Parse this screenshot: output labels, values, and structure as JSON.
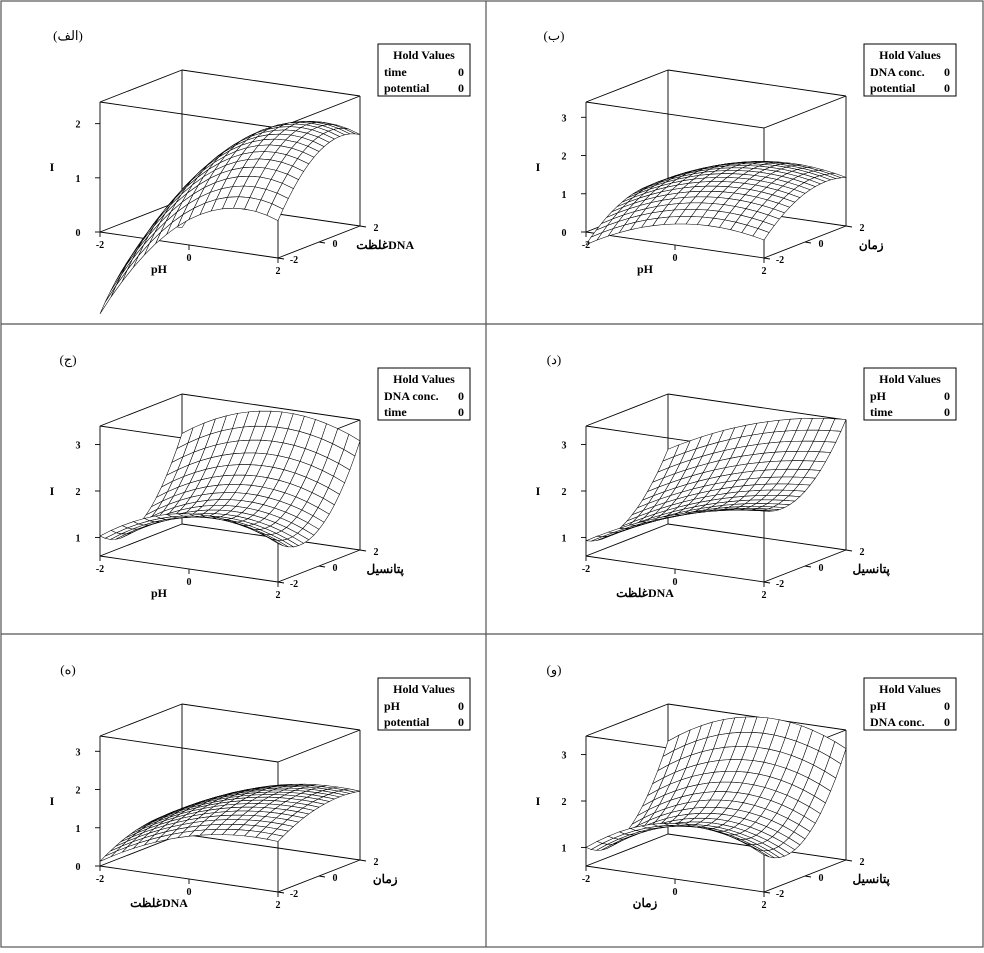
{
  "chart_data": [
    {
      "type": "surface",
      "panel_label": "(الف)",
      "hold_values": {
        "title": "Hold Values",
        "rows": [
          [
            "time",
            "0"
          ],
          [
            "potential",
            "0"
          ]
        ]
      },
      "z_label": "I",
      "x_label": "pH",
      "y_label": "غلظتDNA",
      "z_ticks": [
        "0",
        "1",
        "2"
      ],
      "x_ticks": [
        "-2",
        "0",
        "2"
      ],
      "y_ticks": [
        "-2",
        "0",
        "2"
      ],
      "zlim": [
        0,
        2.4
      ],
      "surface": {
        "c0": 1.45,
        "x": 0.55,
        "y": 0.25,
        "xx": -0.22,
        "yy": -0.12,
        "xy": 0.0
      }
    },
    {
      "type": "surface",
      "panel_label": "(ب)",
      "hold_values": {
        "title": "Hold Values",
        "rows": [
          [
            "DNA conc.",
            "0"
          ],
          [
            "potential",
            "0"
          ]
        ]
      },
      "z_label": "I",
      "x_label": "pH",
      "y_label": "زمان",
      "z_ticks": [
        "0",
        "1",
        "2",
        "3"
      ],
      "x_ticks": [
        "-2",
        "0",
        "2"
      ],
      "y_ticks": [
        "-2",
        "0",
        "2"
      ],
      "zlim": [
        0,
        3.4
      ],
      "surface": {
        "c0": 1.35,
        "x": 0.2,
        "y": 0.2,
        "xx": -0.12,
        "yy": -0.1,
        "xy": 0.0
      }
    },
    {
      "type": "surface",
      "panel_label": "(ج)",
      "hold_values": {
        "title": "Hold Values",
        "rows": [
          [
            "DNA conc.",
            "0"
          ],
          [
            "time",
            "0"
          ]
        ]
      },
      "z_label": "I",
      "x_label": "pH",
      "y_label": "پتانسیل",
      "z_ticks": [
        "1",
        "2",
        "3"
      ],
      "x_ticks": [
        "-2",
        "0",
        "2"
      ],
      "y_ticks": [
        "-2",
        "0",
        "2"
      ],
      "zlim": [
        0.6,
        3.4
      ],
      "surface": {
        "c0": 1.75,
        "x": 0.1,
        "y": 0.38,
        "xx": -0.14,
        "yy": 0.2,
        "xy": 0.0
      }
    },
    {
      "type": "surface",
      "panel_label": "(د)",
      "hold_values": {
        "title": "Hold Values",
        "rows": [
          [
            "pH",
            "0"
          ],
          [
            "time",
            "0"
          ]
        ]
      },
      "z_label": "I",
      "x_label": "غلظتDNA",
      "y_label": "پتانسیل",
      "z_ticks": [
        "1",
        "2",
        "3"
      ],
      "x_ticks": [
        "-2",
        "0",
        "2"
      ],
      "y_ticks": [
        "-2",
        "0",
        "2"
      ],
      "zlim": [
        0.6,
        3.4
      ],
      "surface": {
        "c0": 1.85,
        "x": 0.3,
        "y": 0.32,
        "xx": -0.06,
        "yy": 0.14,
        "xy": 0.0
      }
    },
    {
      "type": "surface",
      "panel_label": "(ه)",
      "hold_values": {
        "title": "Hold Values",
        "rows": [
          [
            "pH",
            "0"
          ],
          [
            "potential",
            "0"
          ]
        ]
      },
      "z_label": "I",
      "x_label": "غلظتDNA",
      "y_label": "زمان",
      "z_ticks": [
        "0",
        "1",
        "2",
        "3"
      ],
      "x_ticks": [
        "-2",
        "0",
        "2"
      ],
      "y_ticks": [
        "-2",
        "0",
        "2"
      ],
      "zlim": [
        0,
        3.4
      ],
      "surface": {
        "c0": 1.6,
        "x": 0.3,
        "y": 0.12,
        "xx": -0.1,
        "yy": -0.06,
        "xy": 0.0
      }
    },
    {
      "type": "surface",
      "panel_label": "(و)",
      "hold_values": {
        "title": "Hold Values",
        "rows": [
          [
            "pH",
            "0"
          ],
          [
            "DNA conc.",
            "0"
          ]
        ]
      },
      "z_label": "I",
      "x_label": "زمان",
      "y_label": "پتانسیل",
      "z_ticks": [
        "1",
        "2",
        "3"
      ],
      "x_ticks": [
        "-2",
        "0",
        "2"
      ],
      "y_ticks": [
        "-2",
        "0",
        "2"
      ],
      "zlim": [
        0.6,
        3.4
      ],
      "surface": {
        "c0": 1.8,
        "x": 0.1,
        "y": 0.4,
        "xx": -0.15,
        "yy": 0.2,
        "xy": 0.0
      }
    }
  ],
  "colors": {
    "line": "#000000",
    "background": "#ffffff",
    "frame": "#555555"
  }
}
